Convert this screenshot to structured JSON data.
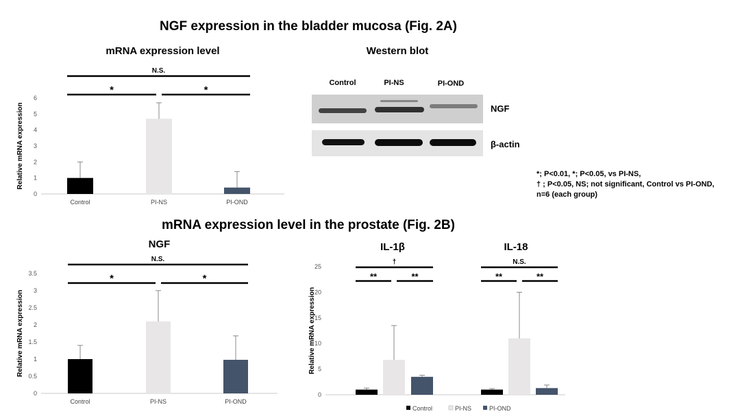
{
  "titles": {
    "fig2a": "NGF expression in the bladder mucosa (Fig. 2A)",
    "fig2b": "mRNA expression level in the prostate (Fig. 2B)"
  },
  "western_blot": {
    "title": "Western blot",
    "lanes": [
      "Control",
      "PI-NS",
      "PI-OND"
    ],
    "markers": [
      "NGF",
      "β-actin"
    ],
    "band_colors": {
      "light_bg": "#cfcfcf",
      "band": "#2a2a2a"
    }
  },
  "stats_note": {
    "line1": "*; P<0.01, *; P<0.05, vs PI-NS,",
    "line2": "† ; P<0.05, NS; not significant, Control vs PI-OND,",
    "line3": "n=6 (each group)"
  },
  "legend": {
    "items": [
      "Control",
      "PI-NS",
      "PI-OND"
    ]
  },
  "colors": {
    "Control": "#000000",
    "PI-NS": "#e8e6e6",
    "PI-OND": "#44546a"
  },
  "chart_data": [
    {
      "type": "bar",
      "title": "mRNA expression level",
      "ylabel": "Relative mRNA expression",
      "categories": [
        "Control",
        "PI-NS",
        "PI-OND"
      ],
      "values": [
        1.0,
        4.7,
        0.4
      ],
      "errors": [
        1.0,
        1.0,
        1.0
      ],
      "ylim": [
        0,
        6
      ],
      "yticks": [
        "0",
        "1",
        "2",
        "3",
        "4",
        "5",
        "6"
      ],
      "significance": [
        {
          "label": "N.S.",
          "from": 0,
          "to": 2,
          "level": 2
        },
        {
          "label": "*",
          "from": 0,
          "to": 1,
          "level": 1
        },
        {
          "label": "*",
          "from": 1,
          "to": 2,
          "level": 1
        }
      ]
    },
    {
      "type": "bar",
      "title": "NGF",
      "ylabel": "Relative mRNA expression",
      "categories": [
        "Control",
        "PI-NS",
        "PI-OND"
      ],
      "values": [
        1.0,
        2.1,
        0.98
      ],
      "errors": [
        0.4,
        0.9,
        0.7
      ],
      "ylim": [
        0,
        3.5
      ],
      "yticks": [
        "0",
        "0.5",
        "1",
        "1.5",
        "2",
        "2.5",
        "3",
        "3.5"
      ],
      "significance": [
        {
          "label": "N.S.",
          "from": 0,
          "to": 2,
          "level": 2
        },
        {
          "label": "*",
          "from": 0,
          "to": 1,
          "level": 1
        },
        {
          "label": "*",
          "from": 1,
          "to": 2,
          "level": 1
        }
      ]
    },
    {
      "type": "bar",
      "ylabel": "Relative mRNA expression",
      "ylim": [
        0,
        25
      ],
      "yticks": [
        "0",
        "5",
        "10",
        "15",
        "20",
        "25"
      ],
      "groups": [
        {
          "title": "IL-1β",
          "categories": [
            "Control",
            "PI-NS",
            "PI-OND"
          ],
          "values": [
            1.0,
            6.8,
            3.5
          ],
          "errors": [
            0.3,
            6.7,
            0.3
          ],
          "significance": [
            {
              "label": "†",
              "from": 0,
              "to": 2,
              "level": 2
            },
            {
              "label": "**",
              "from": 0,
              "to": 1,
              "level": 1
            },
            {
              "label": "**",
              "from": 1,
              "to": 2,
              "level": 1
            }
          ]
        },
        {
          "title": "IL-18",
          "categories": [
            "Control",
            "PI-NS",
            "PI-OND"
          ],
          "values": [
            1.0,
            11.0,
            1.3
          ],
          "errors": [
            0.2,
            9.0,
            0.6
          ],
          "significance": [
            {
              "label": "N.S.",
              "from": 0,
              "to": 2,
              "level": 2
            },
            {
              "label": "**",
              "from": 0,
              "to": 1,
              "level": 1
            },
            {
              "label": "**",
              "from": 1,
              "to": 2,
              "level": 1
            }
          ]
        }
      ]
    }
  ]
}
